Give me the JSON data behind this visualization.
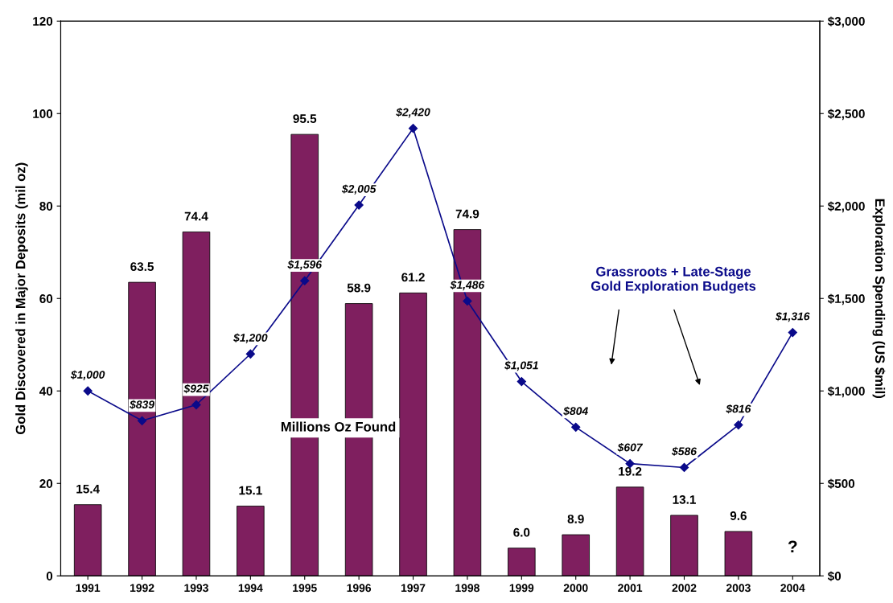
{
  "chart_data": {
    "type": "bar",
    "categories": [
      "1991",
      "1992",
      "1993",
      "1994",
      "1995",
      "1996",
      "1997",
      "1998",
      "1999",
      "2000",
      "2001",
      "2002",
      "2003",
      "2004"
    ],
    "ylabel": "Gold Discovered in Major Deposits (mil oz)",
    "y2label": "Exploration Spending (US $mil)",
    "ylim": [
      0,
      120
    ],
    "yticks": [
      0,
      20,
      40,
      60,
      80,
      100,
      120
    ],
    "y2lim": [
      0,
      3000
    ],
    "y2ticks": [
      {
        "value": 0,
        "label": "$0"
      },
      {
        "value": 500,
        "label": "$500"
      },
      {
        "value": 1000,
        "label": "$1,000"
      },
      {
        "value": 1500,
        "label": "$1,500"
      },
      {
        "value": 2000,
        "label": "$2,000"
      },
      {
        "value": 2500,
        "label": "$2,500"
      },
      {
        "value": 3000,
        "label": "$3,000"
      }
    ],
    "grid": false,
    "legend": false,
    "series": [
      {
        "name": "Millions Oz Found",
        "color": "#7f1f5f",
        "values": [
          15.4,
          63.5,
          74.4,
          15.1,
          95.5,
          58.9,
          61.2,
          74.9,
          6.0,
          8.9,
          19.2,
          13.1,
          9.6,
          null
        ],
        "value_labels": [
          "15.4",
          "63.5",
          "74.4",
          "15.1",
          "95.5",
          "58.9",
          "61.2",
          "74.9",
          "6.0",
          "8.9",
          "19.2",
          "13.1",
          "9.6",
          "?"
        ]
      },
      {
        "name": "Grassroots + Late-Stage\nGold Exploration Budgets",
        "type": "line",
        "axis": "y2",
        "color": "#0a0a8a",
        "marker": "diamond",
        "line_style": "solid",
        "values": [
          1000,
          839,
          925,
          1200,
          1596,
          2005,
          2420,
          1486,
          1051,
          804,
          607,
          586,
          816,
          1316
        ],
        "value_labels": [
          "$1,000",
          "$839",
          "$925",
          "$1,200",
          "$1,596",
          "$2,005",
          "$2,420",
          "$1,486",
          "$1,051",
          "$804",
          "$607",
          "$586",
          "$816",
          "$1,316"
        ]
      }
    ]
  }
}
